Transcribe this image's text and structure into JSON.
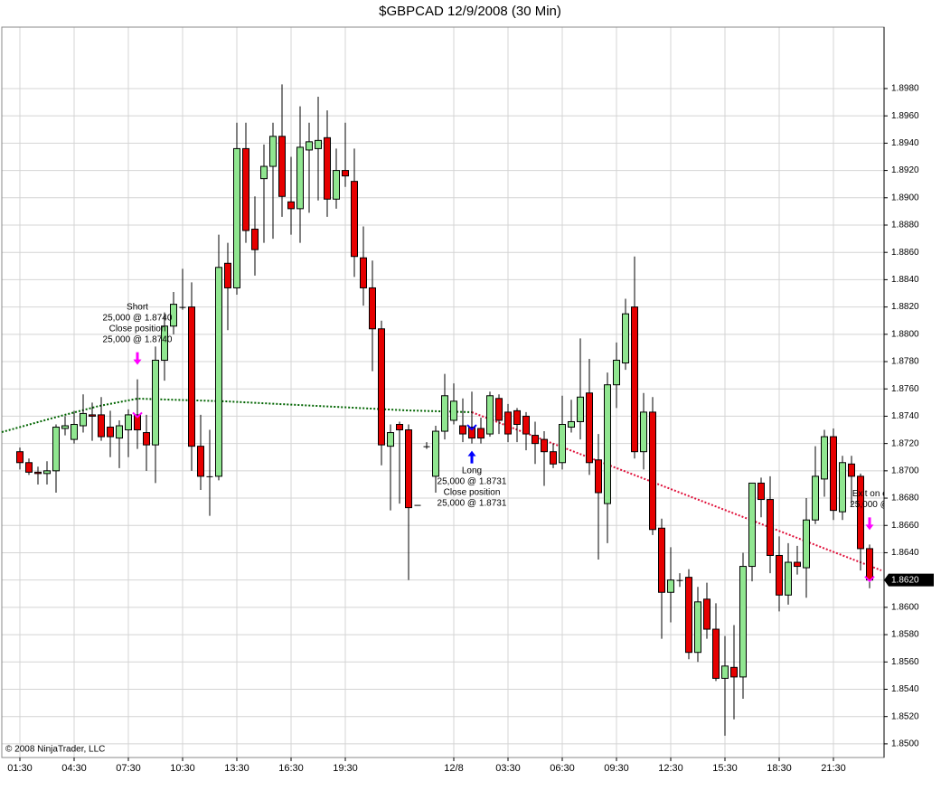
{
  "chart_data": {
    "type": "candlestick",
    "title": "$GBPCAD  12/9/2008 (30 Min)",
    "copyright": "© 2008 NinjaTrader, LLC",
    "up_color": "#90e690",
    "down_color": "#e60000",
    "grid": true,
    "categories": [
      "01:30",
      null,
      null,
      null,
      null,
      null,
      "04:30",
      null,
      null,
      null,
      null,
      null,
      "07:30",
      null,
      null,
      null,
      null,
      null,
      "10:30",
      null,
      null,
      null,
      null,
      null,
      "13:30",
      null,
      null,
      null,
      null,
      null,
      "16:30",
      null,
      null,
      null,
      null,
      null,
      "19:30",
      null,
      null,
      null,
      null,
      null,
      null,
      null,
      null,
      null,
      null,
      null,
      "12/8",
      null,
      null,
      null,
      null,
      null,
      "03:30",
      null,
      null,
      null,
      null,
      null,
      "06:30",
      null,
      null,
      null,
      null,
      null,
      "09:30",
      null,
      null,
      null,
      null,
      null,
      "12:30",
      null,
      null,
      null,
      null,
      null,
      "15:30",
      null,
      null,
      null,
      null,
      null,
      "18:30",
      null,
      null,
      null,
      null,
      null,
      "21:30",
      null,
      null,
      null,
      null
    ],
    "open": [
      1.8714,
      1.8706,
      1.8699,
      1.8698,
      1.87,
      1.8731,
      1.8723,
      1.8733,
      1.8741,
      1.8741,
      1.8732,
      1.8724,
      1.873,
      1.8741,
      1.8728,
      1.8719,
      1.8781,
      1.8806,
      1.882,
      1.882,
      1.8718,
      1.8696,
      1.8696,
      1.8852,
      1.8834,
      1.8936,
      1.8877,
      1.8914,
      1.8923,
      1.8945,
      1.8897,
      1.8892,
      1.8935,
      1.8936,
      1.8944,
      1.8899,
      1.892,
      1.8912,
      1.8856,
      1.8834,
      1.8804,
      1.8718,
      1.8734,
      1.873,
      1.8675,
      1.8718,
      1.8696,
      1.8729,
      1.8737,
      1.8733,
      1.8732,
      1.8731,
      1.8727,
      1.8753,
      1.8743,
      1.8744,
      1.874,
      1.8726,
      1.8723,
      1.8714,
      1.8706,
      1.8732,
      1.8736,
      1.8757,
      1.8708,
      1.8676,
      1.8763,
      1.8779,
      1.882,
      1.8714,
      1.8743,
      1.8658,
      1.8611,
      1.862,
      1.8622,
      1.8567,
      1.8606,
      1.8584,
      1.8548,
      1.8556,
      1.8549,
      1.863,
      1.8691,
      1.8679,
      1.8638,
      1.8609,
      1.8633,
      1.8629,
      1.8664,
      1.8694,
      1.8725,
      1.867,
      1.8705,
      1.8696,
      1.8643
    ],
    "high": [
      1.8717,
      1.8709,
      1.8703,
      1.8707,
      1.8734,
      1.874,
      1.8744,
      1.8756,
      1.875,
      1.8754,
      1.8744,
      1.8737,
      1.8745,
      1.8767,
      1.8741,
      1.8791,
      1.8816,
      1.8831,
      1.8848,
      1.8838,
      1.8741,
      1.873,
      1.8873,
      1.8867,
      1.8955,
      1.8955,
      1.8901,
      1.8939,
      1.8955,
      1.8983,
      1.893,
      1.8967,
      1.8955,
      1.8974,
      1.8964,
      1.8936,
      1.8955,
      1.8936,
      1.8879,
      1.8854,
      1.881,
      1.8734,
      1.8736,
      1.8734,
      1.8675,
      1.8721,
      1.8733,
      1.8771,
      1.8764,
      1.8753,
      1.8758,
      1.8739,
      1.8758,
      1.8756,
      1.8749,
      1.8746,
      1.8743,
      1.8736,
      1.8729,
      1.872,
      1.8755,
      1.8752,
      1.8797,
      1.8782,
      1.8727,
      1.8772,
      1.8794,
      1.8826,
      1.8857,
      1.8757,
      1.8754,
      1.8665,
      1.8644,
      1.8625,
      1.8628,
      1.8615,
      1.8618,
      1.8603,
      1.8579,
      1.8587,
      1.864,
      1.8691,
      1.8695,
      1.8696,
      1.8652,
      1.8647,
      1.8645,
      1.868,
      1.8718,
      1.873,
      1.8731,
      1.8711,
      1.8711,
      1.8698,
      1.8646
    ],
    "low": [
      1.8701,
      1.8697,
      1.869,
      1.869,
      1.8684,
      1.8726,
      1.872,
      1.8728,
      1.8722,
      1.8722,
      1.871,
      1.8702,
      1.871,
      1.8716,
      1.87,
      1.8691,
      1.8766,
      1.88,
      1.8818,
      1.87,
      1.8686,
      1.8667,
      1.8693,
      1.8803,
      1.8829,
      1.8867,
      1.8843,
      1.8867,
      1.887,
      1.8886,
      1.8873,
      1.8867,
      1.8889,
      1.8898,
      1.8886,
      1.8892,
      1.8908,
      1.8842,
      1.8821,
      1.8773,
      1.8704,
      1.8671,
      1.8676,
      1.862,
      1.8675,
      1.8716,
      1.8684,
      1.8723,
      1.8734,
      1.8721,
      1.872,
      1.872,
      1.8725,
      1.8727,
      1.8721,
      1.8721,
      1.8715,
      1.8705,
      1.8689,
      1.8702,
      1.8701,
      1.8728,
      1.8723,
      1.8697,
      1.8635,
      1.8647,
      1.8746,
      1.8774,
      1.8709,
      1.8701,
      1.8653,
      1.8577,
      1.8589,
      1.8615,
      1.8562,
      1.856,
      1.8577,
      1.8546,
      1.8506,
      1.8518,
      1.8533,
      1.8619,
      1.8666,
      1.8625,
      1.8597,
      1.8602,
      1.8624,
      1.8607,
      1.8661,
      1.8681,
      1.8664,
      1.8664,
      1.8675,
      1.8627,
      1.8614
    ],
    "close": [
      1.8706,
      1.8699,
      1.8698,
      1.87,
      1.8732,
      1.8733,
      1.8734,
      1.8742,
      1.874,
      1.8725,
      1.8725,
      1.8733,
      1.8741,
      1.873,
      1.8719,
      1.8781,
      1.8806,
      1.8822,
      1.882,
      1.8718,
      1.8696,
      1.8696,
      1.8849,
      1.8834,
      1.8936,
      1.8876,
      1.8862,
      1.8923,
      1.8945,
      1.8901,
      1.8892,
      1.8937,
      1.8941,
      1.8942,
      1.8899,
      1.892,
      1.8916,
      1.8857,
      1.8834,
      1.8804,
      1.8719,
      1.8728,
      1.873,
      1.8673,
      1.8675,
      1.8718,
      1.8729,
      1.8755,
      1.8751,
      1.8727,
      1.8724,
      1.8724,
      1.8755,
      1.8737,
      1.8727,
      1.8734,
      1.8727,
      1.872,
      1.8714,
      1.8705,
      1.8734,
      1.8736,
      1.8754,
      1.8706,
      1.8684,
      1.8763,
      1.8781,
      1.8815,
      1.8714,
      1.8743,
      1.8657,
      1.8611,
      1.862,
      1.862,
      1.8567,
      1.8604,
      1.8584,
      1.8548,
      1.8557,
      1.8549,
      1.863,
      1.8691,
      1.8679,
      1.8638,
      1.8609,
      1.8633,
      1.863,
      1.8664,
      1.8696,
      1.8725,
      1.8671,
      1.8706,
      1.8696,
      1.8643,
      1.862
    ],
    "ylim": [
      1.849,
      1.9025
    ],
    "yticks": [
      {
        "value": 1.85,
        "label": "1.8500"
      },
      {
        "value": 1.852,
        "label": "1.8520"
      },
      {
        "value": 1.854,
        "label": "1.8540"
      },
      {
        "value": 1.856,
        "label": "1.8560"
      },
      {
        "value": 1.858,
        "label": "1.8580"
      },
      {
        "value": 1.86,
        "label": "1.8600"
      },
      {
        "value": 1.862,
        "label": "1.8620"
      },
      {
        "value": 1.864,
        "label": "1.8640"
      },
      {
        "value": 1.866,
        "label": "1.8660"
      },
      {
        "value": 1.868,
        "label": "1.8680"
      },
      {
        "value": 1.87,
        "label": "1.8700"
      },
      {
        "value": 1.872,
        "label": "1.8720"
      },
      {
        "value": 1.874,
        "label": "1.8740"
      },
      {
        "value": 1.876,
        "label": "1.8760"
      },
      {
        "value": 1.878,
        "label": "1.8780"
      },
      {
        "value": 1.88,
        "label": "1.8800"
      },
      {
        "value": 1.882,
        "label": "1.8820"
      },
      {
        "value": 1.884,
        "label": "1.8840"
      },
      {
        "value": 1.886,
        "label": "1.8860"
      },
      {
        "value": 1.888,
        "label": "1.8880"
      },
      {
        "value": 1.89,
        "label": "1.8900"
      },
      {
        "value": 1.892,
        "label": "1.8920"
      },
      {
        "value": 1.894,
        "label": "1.8940"
      },
      {
        "value": 1.896,
        "label": "1.8960"
      },
      {
        "value": 1.898,
        "label": "1.8980"
      }
    ],
    "last_price": {
      "value": 1.862,
      "label": "1.8620"
    },
    "trades": [
      {
        "index": 13,
        "price": 1.874,
        "color": "#ff00ff",
        "direction": "down",
        "lines": [
          "Short",
          "25,000 @ 1.8740",
          "Close position",
          "25,000 @ 1.8740"
        ]
      },
      {
        "index": 50,
        "price": 1.8731,
        "color": "#0000ff",
        "direction": "up",
        "lines": [
          "Long",
          "25,000 @ 1.8731",
          "Close position",
          "25,000 @ 1.8731"
        ]
      },
      {
        "index": 94,
        "price": 1.862,
        "color": "#ff00ff",
        "direction": "down",
        "lines": [
          "Exit on c",
          "25,000 @"
        ]
      }
    ]
  }
}
